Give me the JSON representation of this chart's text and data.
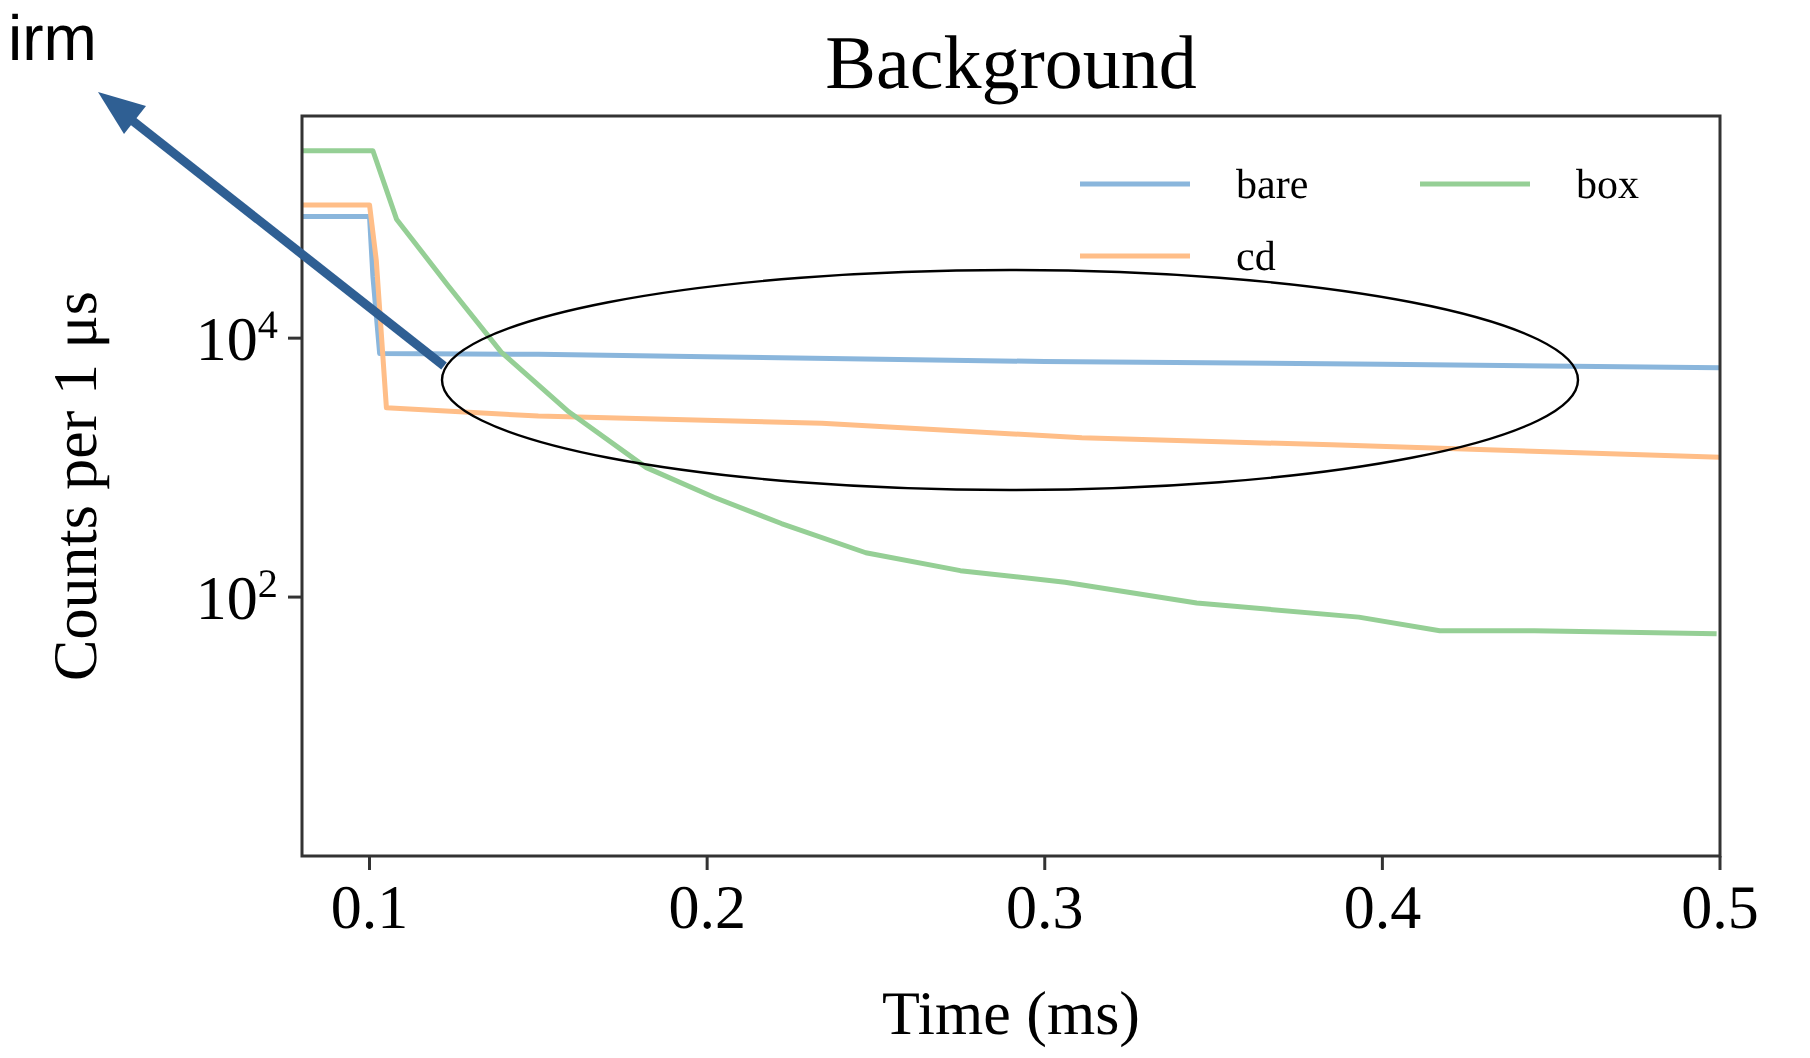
{
  "chart_data": {
    "type": "line",
    "title": "Background",
    "xlabel": "Time (ms)",
    "ylabel": "Counts per 1 μs",
    "log": "y",
    "xlim": [
      0.08,
      0.5
    ],
    "ylim": [
      1,
      520000
    ],
    "xticks": [
      0.1,
      0.2,
      0.3,
      0.4,
      0.5
    ],
    "yticks": [
      {
        "value": 100,
        "label": "10$^{2}$"
      },
      {
        "value": 10000,
        "label": "10$^{4}$"
      }
    ],
    "grid": false,
    "legend": "top right",
    "annotations": [
      "irm"
    ],
    "series": [
      {
        "name": "bare",
        "color": "#8ab6dc",
        "x": [
          0.08,
          0.1,
          0.101,
          0.103,
          0.15,
          0.2,
          0.3,
          0.4,
          0.5
        ],
        "values": [
          87000,
          87000,
          30000,
          7600,
          7500,
          7200,
          6600,
          6300,
          5900
        ]
      },
      {
        "name": "cd",
        "color": "#ffbe88",
        "x": [
          0.08,
          0.1,
          0.102,
          0.105,
          0.15,
          0.234,
          0.311,
          0.385,
          0.5
        ],
        "values": [
          107000,
          107000,
          40000,
          2900,
          2500,
          2200,
          1700,
          1500,
          1200
        ]
      },
      {
        "name": "box",
        "color": "#95cf95",
        "x": [
          0.08,
          0.101,
          0.108,
          0.123,
          0.139,
          0.159,
          0.182,
          0.202,
          0.222,
          0.247,
          0.275,
          0.306,
          0.345,
          0.393,
          0.417,
          0.445,
          0.499
        ],
        "values": [
          280000,
          280000,
          83000,
          26000,
          7800,
          2700,
          1000,
          590,
          370,
          220,
          160,
          130,
          90,
          70,
          55,
          55,
          52
        ]
      }
    ]
  }
}
